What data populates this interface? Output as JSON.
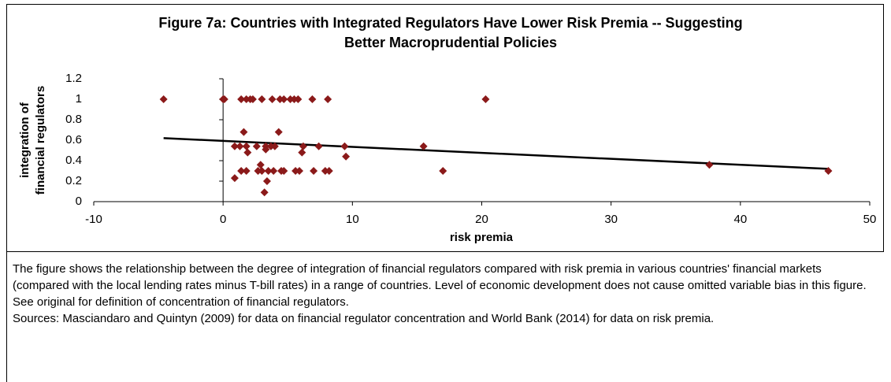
{
  "chart_data": {
    "type": "scatter",
    "title": [
      "Figure 7a: Countries with Integrated Regulators Have Lower Risk Premia -- Suggesting",
      "Better Macroprudential Policies"
    ],
    "xlabel": "risk premia",
    "ylabel": [
      "integration of",
      "financial regulators"
    ],
    "xlim": [
      -10,
      50
    ],
    "xticks": [
      -10,
      0,
      10,
      20,
      30,
      40,
      50
    ],
    "ylim": [
      0,
      1.2
    ],
    "yticks": [
      0,
      0.2,
      0.4,
      0.6,
      0.8,
      1,
      1.2
    ],
    "color": "#8b1a1a",
    "x": [
      -4.6,
      0,
      0.1,
      1.4,
      1.8,
      2.1,
      2.3,
      3.0,
      3.8,
      4.4,
      4.7,
      5.2,
      5.5,
      5.8,
      6.9,
      8.1,
      20.3,
      1.6,
      4.3,
      0.9,
      1.3,
      1.8,
      2.6,
      3.3,
      3.7,
      4.0,
      6.2,
      7.4,
      9.4,
      15.5,
      1.9,
      3.3,
      6.1,
      9.5,
      2.9,
      37.6,
      1.4,
      1.8,
      2.7,
      3.0,
      3.5,
      3.9,
      4.5,
      4.7,
      5.6,
      5.9,
      7.0,
      7.9,
      8.2,
      17.0,
      46.8,
      0.9,
      3.4,
      3.2
    ],
    "y": [
      1,
      1,
      1,
      1,
      1,
      1,
      1,
      1,
      1,
      1,
      1,
      1,
      1,
      1,
      1,
      1,
      1,
      0.68,
      0.68,
      0.54,
      0.54,
      0.54,
      0.54,
      0.54,
      0.54,
      0.54,
      0.54,
      0.54,
      0.54,
      0.54,
      0.48,
      0.51,
      0.48,
      0.44,
      0.36,
      0.36,
      0.3,
      0.3,
      0.3,
      0.3,
      0.3,
      0.3,
      0.3,
      0.3,
      0.3,
      0.3,
      0.3,
      0.3,
      0.3,
      0.3,
      0.3,
      0.23,
      0.2,
      0.09
    ],
    "trendline": {
      "x": [
        -4.6,
        46.8
      ],
      "y": [
        0.62,
        0.32
      ],
      "color": "#000000"
    }
  },
  "notes": [
    "The figure shows the relationship between the degree of integration of financial regulators compared with risk premia in various countries' financial markets (compared with the local lending rates minus T-bill rates) in a range of countries. Level of economic development does not cause omitted variable bias in this figure. See original for definition of concentration of financial regulators.",
    "Sources: Masciandaro and Quintyn (2009) for data on financial regulator concentration and World Bank (2014) for data on risk premia."
  ]
}
